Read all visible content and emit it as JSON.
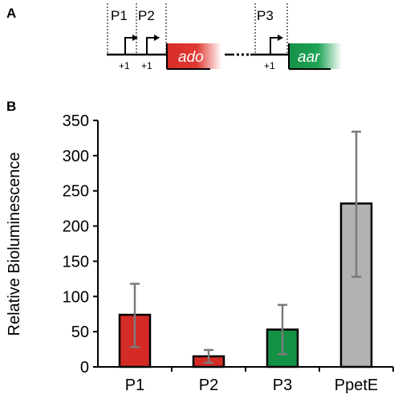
{
  "panel_a": {
    "label": "A",
    "promoters": [
      "P1",
      "P2",
      "P3"
    ],
    "tss": [
      "+1",
      "+1",
      "+1"
    ],
    "genes": [
      {
        "name": "ado",
        "color": "#d42b26"
      },
      {
        "name": "aar",
        "color": "#139246"
      }
    ]
  },
  "chart_data": {
    "panel_label": "B",
    "type": "bar",
    "categories": [
      "P1",
      "P2",
      "P3",
      "PpetE"
    ],
    "values": [
      74,
      15,
      53,
      232
    ],
    "error_low": [
      28,
      6,
      18,
      128
    ],
    "error_high": [
      118,
      24,
      88,
      334
    ],
    "colors": [
      "#d42b26",
      "#d42b26",
      "#139246",
      "#b2b2b2"
    ],
    "ylabel": "Relative Bioluminescence",
    "ylim": [
      0,
      350
    ],
    "yticks": [
      0,
      50,
      100,
      150,
      200,
      250,
      300,
      350
    ],
    "grid": false
  }
}
